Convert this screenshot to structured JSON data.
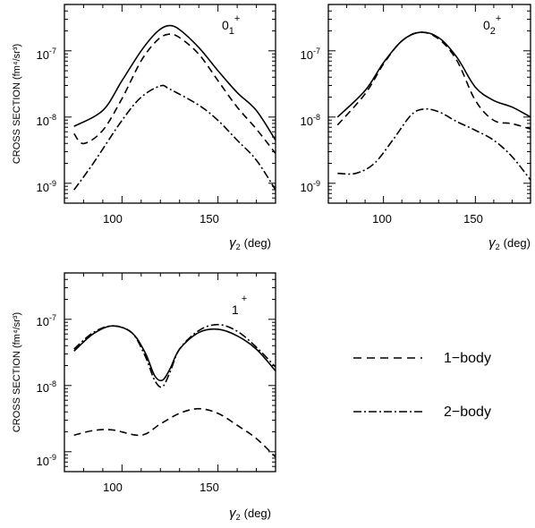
{
  "chart_data": [
    {
      "type": "line",
      "panel_label": "0",
      "panel_sub": "1",
      "panel_sup": "+",
      "ylabel": "CROSS SECTION (fm⁴/sr³)",
      "xlabel_symbol": "γ",
      "xlabel_sub": "2",
      "xlabel_unit": "(deg)",
      "xlim": [
        70,
        180
      ],
      "ylim_log10": [
        -9.3,
        -6.3
      ],
      "y_scale": "log",
      "x_ticks": [
        100,
        150
      ],
      "y_ticks": [
        {
          "base": "10",
          "exp": "-7",
          "log": -7
        },
        {
          "base": "10",
          "exp": "-8",
          "log": -8
        },
        {
          "base": "10",
          "exp": "-9",
          "log": -9
        }
      ],
      "series": [
        {
          "style": "solid",
          "x": [
            75,
            90,
            100,
            110,
            118,
            124,
            130,
            140,
            150,
            160,
            170,
            180
          ],
          "log10y": [
            -8.14,
            -7.9,
            -7.45,
            -7.0,
            -6.72,
            -6.62,
            -6.68,
            -6.95,
            -7.3,
            -7.63,
            -7.9,
            -8.35
          ]
        },
        {
          "style": "dashed",
          "x": [
            75,
            80,
            90,
            100,
            110,
            118,
            124,
            130,
            140,
            150,
            160,
            170,
            180
          ],
          "log10y": [
            -8.25,
            -8.4,
            -8.2,
            -7.72,
            -7.15,
            -6.85,
            -6.75,
            -6.8,
            -7.05,
            -7.45,
            -7.85,
            -8.18,
            -8.55
          ]
        },
        {
          "style": "dashdot",
          "x": [
            75,
            85,
            100,
            110,
            120,
            125,
            140,
            150,
            160,
            170,
            180
          ],
          "log10y": [
            -9.1,
            -8.7,
            -8.05,
            -7.7,
            -7.53,
            -7.58,
            -7.82,
            -8.05,
            -8.35,
            -8.65,
            -9.1
          ]
        }
      ]
    },
    {
      "type": "line",
      "panel_label": "0",
      "panel_sub": "2",
      "panel_sup": "+",
      "xlabel_symbol": "γ",
      "xlabel_sub": "2",
      "xlabel_unit": "(deg)",
      "xlim": [
        70,
        180
      ],
      "ylim_log10": [
        -9.3,
        -6.3
      ],
      "y_scale": "log",
      "x_ticks": [
        100,
        150
      ],
      "y_ticks": [
        {
          "base": "10",
          "exp": "-7",
          "log": -7
        },
        {
          "base": "10",
          "exp": "-8",
          "log": -8
        },
        {
          "base": "10",
          "exp": "-9",
          "log": -9
        }
      ],
      "series": [
        {
          "style": "solid",
          "x": [
            75,
            90,
            100,
            110,
            120,
            130,
            140,
            150,
            160,
            170,
            180
          ],
          "log10y": [
            -8.0,
            -7.6,
            -7.18,
            -6.85,
            -6.72,
            -6.8,
            -7.1,
            -7.55,
            -7.75,
            -7.85,
            -8.0
          ]
        },
        {
          "style": "dashed",
          "x": [
            75,
            90,
            100,
            110,
            120,
            130,
            140,
            150,
            160,
            170,
            180
          ],
          "log10y": [
            -8.12,
            -7.65,
            -7.2,
            -6.85,
            -6.72,
            -6.82,
            -7.15,
            -7.75,
            -8.05,
            -8.1,
            -8.18
          ]
        },
        {
          "style": "dashdot",
          "x": [
            75,
            85,
            95,
            105,
            115,
            122,
            130,
            140,
            150,
            160,
            170,
            180
          ],
          "log10y": [
            -8.85,
            -8.85,
            -8.7,
            -8.35,
            -7.97,
            -7.88,
            -7.92,
            -8.07,
            -8.2,
            -8.35,
            -8.6,
            -8.95
          ]
        }
      ]
    },
    {
      "type": "line",
      "panel_label": "1",
      "panel_sub": "",
      "panel_sup": "+",
      "ylabel": "CROSS SECTION (fm⁴/sr³)",
      "xlabel_symbol": "γ",
      "xlabel_sub": "2",
      "xlabel_unit": "(deg)",
      "xlim": [
        70,
        180
      ],
      "ylim_log10": [
        -9.3,
        -6.3
      ],
      "y_scale": "log",
      "x_ticks": [
        100,
        150
      ],
      "y_ticks": [
        {
          "base": "10",
          "exp": "-7",
          "log": -7
        },
        {
          "base": "10",
          "exp": "-8",
          "log": -8
        },
        {
          "base": "10",
          "exp": "-9",
          "log": -9
        }
      ],
      "series": [
        {
          "style": "solid",
          "x": [
            75,
            85,
            95,
            105,
            112,
            117,
            121,
            125,
            130,
            140,
            150,
            160,
            170,
            180
          ],
          "log10y": [
            -7.48,
            -7.22,
            -7.1,
            -7.2,
            -7.5,
            -7.85,
            -7.92,
            -7.75,
            -7.45,
            -7.2,
            -7.15,
            -7.25,
            -7.45,
            -7.78
          ]
        },
        {
          "style": "dashed",
          "x": [
            75,
            85,
            95,
            110,
            120,
            130,
            140,
            150,
            160,
            170,
            180
          ],
          "log10y": [
            -8.75,
            -8.68,
            -8.67,
            -8.75,
            -8.58,
            -8.42,
            -8.35,
            -8.42,
            -8.6,
            -8.8,
            -9.08
          ]
        },
        {
          "style": "dashdot",
          "x": [
            75,
            85,
            95,
            105,
            112,
            117,
            121,
            125,
            130,
            140,
            150,
            160,
            170,
            180
          ],
          "log10y": [
            -7.45,
            -7.2,
            -7.1,
            -7.2,
            -7.55,
            -7.92,
            -8.02,
            -7.8,
            -7.45,
            -7.17,
            -7.08,
            -7.18,
            -7.42,
            -7.72
          ]
        }
      ]
    }
  ],
  "legend": [
    {
      "style": "dashed",
      "label": "1−body"
    },
    {
      "style": "dashdot",
      "label": "2−body"
    }
  ]
}
